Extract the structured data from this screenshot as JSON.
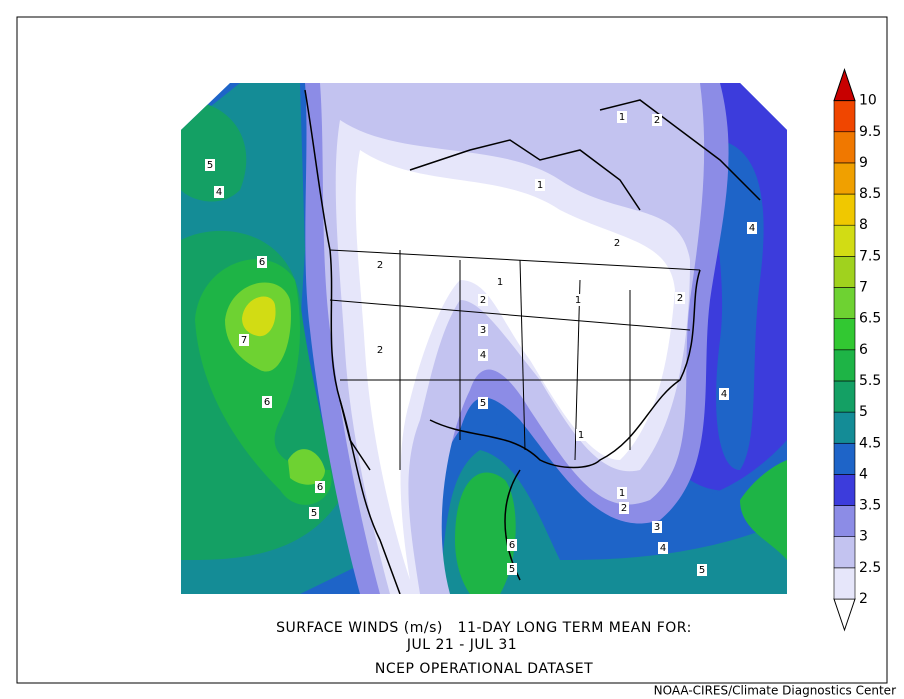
{
  "title": {
    "line1": "SURFACE WINDS (m/s)   11-DAY LONG TERM MEAN FOR:",
    "line2": "JUL 21 - JUL 31",
    "line3": "NCEP OPERATIONAL DATASET"
  },
  "credit": "NOAA-CIRES/Climate Diagnostics Center",
  "colorbar": {
    "levels": [
      2,
      2.5,
      3,
      3.5,
      4,
      4.5,
      5,
      5.5,
      6,
      6.5,
      7,
      7.5,
      8,
      8.5,
      9,
      9.5,
      10
    ],
    "colors": [
      "#ffffff",
      "#e6e6fa",
      "#c3c3f0",
      "#8c8ce6",
      "#3c3cdc",
      "#1e64c8",
      "#148c96",
      "#14a064",
      "#1eb446",
      "#32c832",
      "#6ed232",
      "#a0d21e",
      "#d2dc14",
      "#f0c800",
      "#f0a000",
      "#f07800",
      "#f04600",
      "#c80000"
    ]
  },
  "contour_labels": [
    5,
    4,
    6,
    7,
    6,
    6,
    5,
    2,
    2,
    2,
    3,
    4,
    5,
    1,
    1,
    2,
    1,
    2,
    2,
    1,
    4,
    4,
    1,
    1,
    2,
    3,
    4,
    5,
    6,
    5
  ]
}
